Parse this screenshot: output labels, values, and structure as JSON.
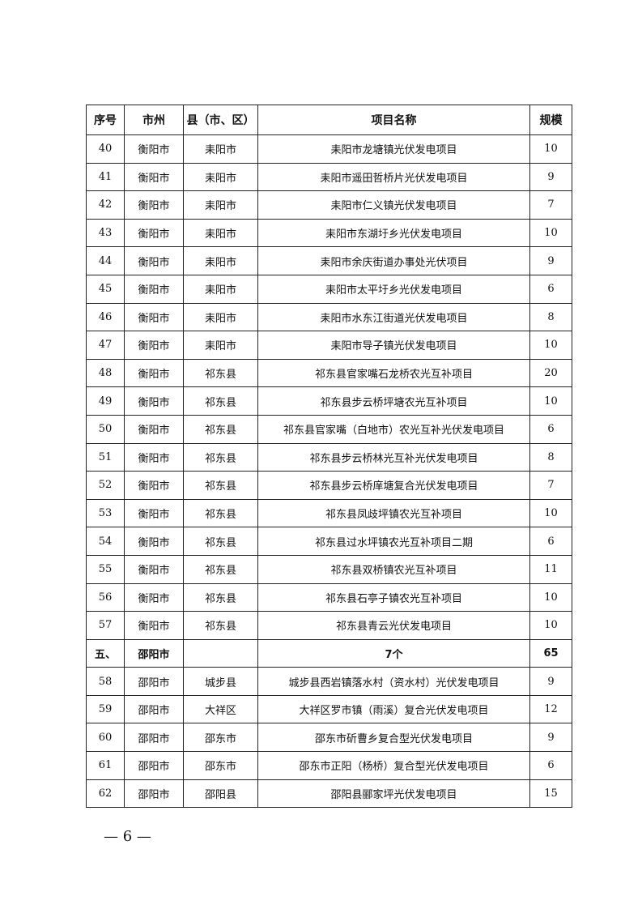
{
  "table": {
    "header": [
      "序号",
      "市州",
      "县（市、区）",
      "项目名称",
      "规模"
    ],
    "rows": [
      [
        "40",
        "衡阳市",
        "耒阳市",
        "耒阳市龙塘镇光伏发电项目",
        "10"
      ],
      [
        "41",
        "衡阳市",
        "耒阳市",
        "耒阳市遥田哲桥片光伏发电项目",
        "9"
      ],
      [
        "42",
        "衡阳市",
        "耒阳市",
        "耒阳市仁义镇光伏发电项目",
        "7"
      ],
      [
        "43",
        "衡阳市",
        "耒阳市",
        "耒阳市东湖圩乡光伏发电项目",
        "10"
      ],
      [
        "44",
        "衡阳市",
        "耒阳市",
        "耒阳市余庆街道办事处光伏项目",
        "9"
      ],
      [
        "45",
        "衡阳市",
        "耒阳市",
        "耒阳市太平圩乡光伏发电项目",
        "6"
      ],
      [
        "46",
        "衡阳市",
        "耒阳市",
        "耒阳市水东江街道光伏发电项目",
        "8"
      ],
      [
        "47",
        "衡阳市",
        "耒阳市",
        "耒阳市导子镇光伏发电项目",
        "10"
      ],
      [
        "48",
        "衡阳市",
        "祁东县",
        "祁东县官家嘴石龙桥农光互补项目",
        "20"
      ],
      [
        "49",
        "衡阳市",
        "祁东县",
        "祁东县步云桥坪塘农光互补项目",
        "10"
      ],
      [
        "50",
        "衡阳市",
        "祁东县",
        "祁东县官家嘴（白地市）农光互补光伏发电项目",
        "6"
      ],
      [
        "51",
        "衡阳市",
        "祁东县",
        "祁东县步云桥林光互补光伏发电项目",
        "8"
      ],
      [
        "52",
        "衡阳市",
        "祁东县",
        "祁东县步云桥庠塘复合光伏发电项目",
        "7"
      ],
      [
        "53",
        "衡阳市",
        "祁东县",
        "祁东县凤歧坪镇农光互补项目",
        "10"
      ],
      [
        "54",
        "衡阳市",
        "祁东县",
        "祁东县过水坪镇农光互补项目二期",
        "6"
      ],
      [
        "55",
        "衡阳市",
        "祁东县",
        "祁东县双桥镇农光互补项目",
        "11"
      ],
      [
        "56",
        "衡阳市",
        "祁东县",
        "祁东县石亭子镇农光互补项目",
        "10"
      ],
      [
        "57",
        "衡阳市",
        "祁东县",
        "祁东县青云光伏发电项目",
        "10"
      ],
      [
        "五、",
        "邵阳市",
        null,
        "7个",
        "65"
      ],
      [
        "58",
        "邵阳市",
        "城步县",
        "城步县西岩镇落水村（资水村）光伏发电项目",
        "9"
      ],
      [
        "59",
        "邵阳市",
        "大祥区",
        "大祥区罗市镇（雨溪）复合光伏发电项目",
        "12"
      ],
      [
        "60",
        "邵阳市",
        "邵东市",
        "邵东市斫曹乡复合型光伏发电项目",
        "9"
      ],
      [
        "61",
        "邵阳市",
        "邵东市",
        "邵东市正阳（杨桥）复合型光伏发电项目",
        "6"
      ],
      [
        "62",
        "邵阳市",
        "邵阳县",
        "邵阳县郦家坪光伏发电项目",
        "15"
      ]
    ],
    "bold_rows": [
      18
    ]
  },
  "footer": {
    "page_number": "— 6 —"
  }
}
